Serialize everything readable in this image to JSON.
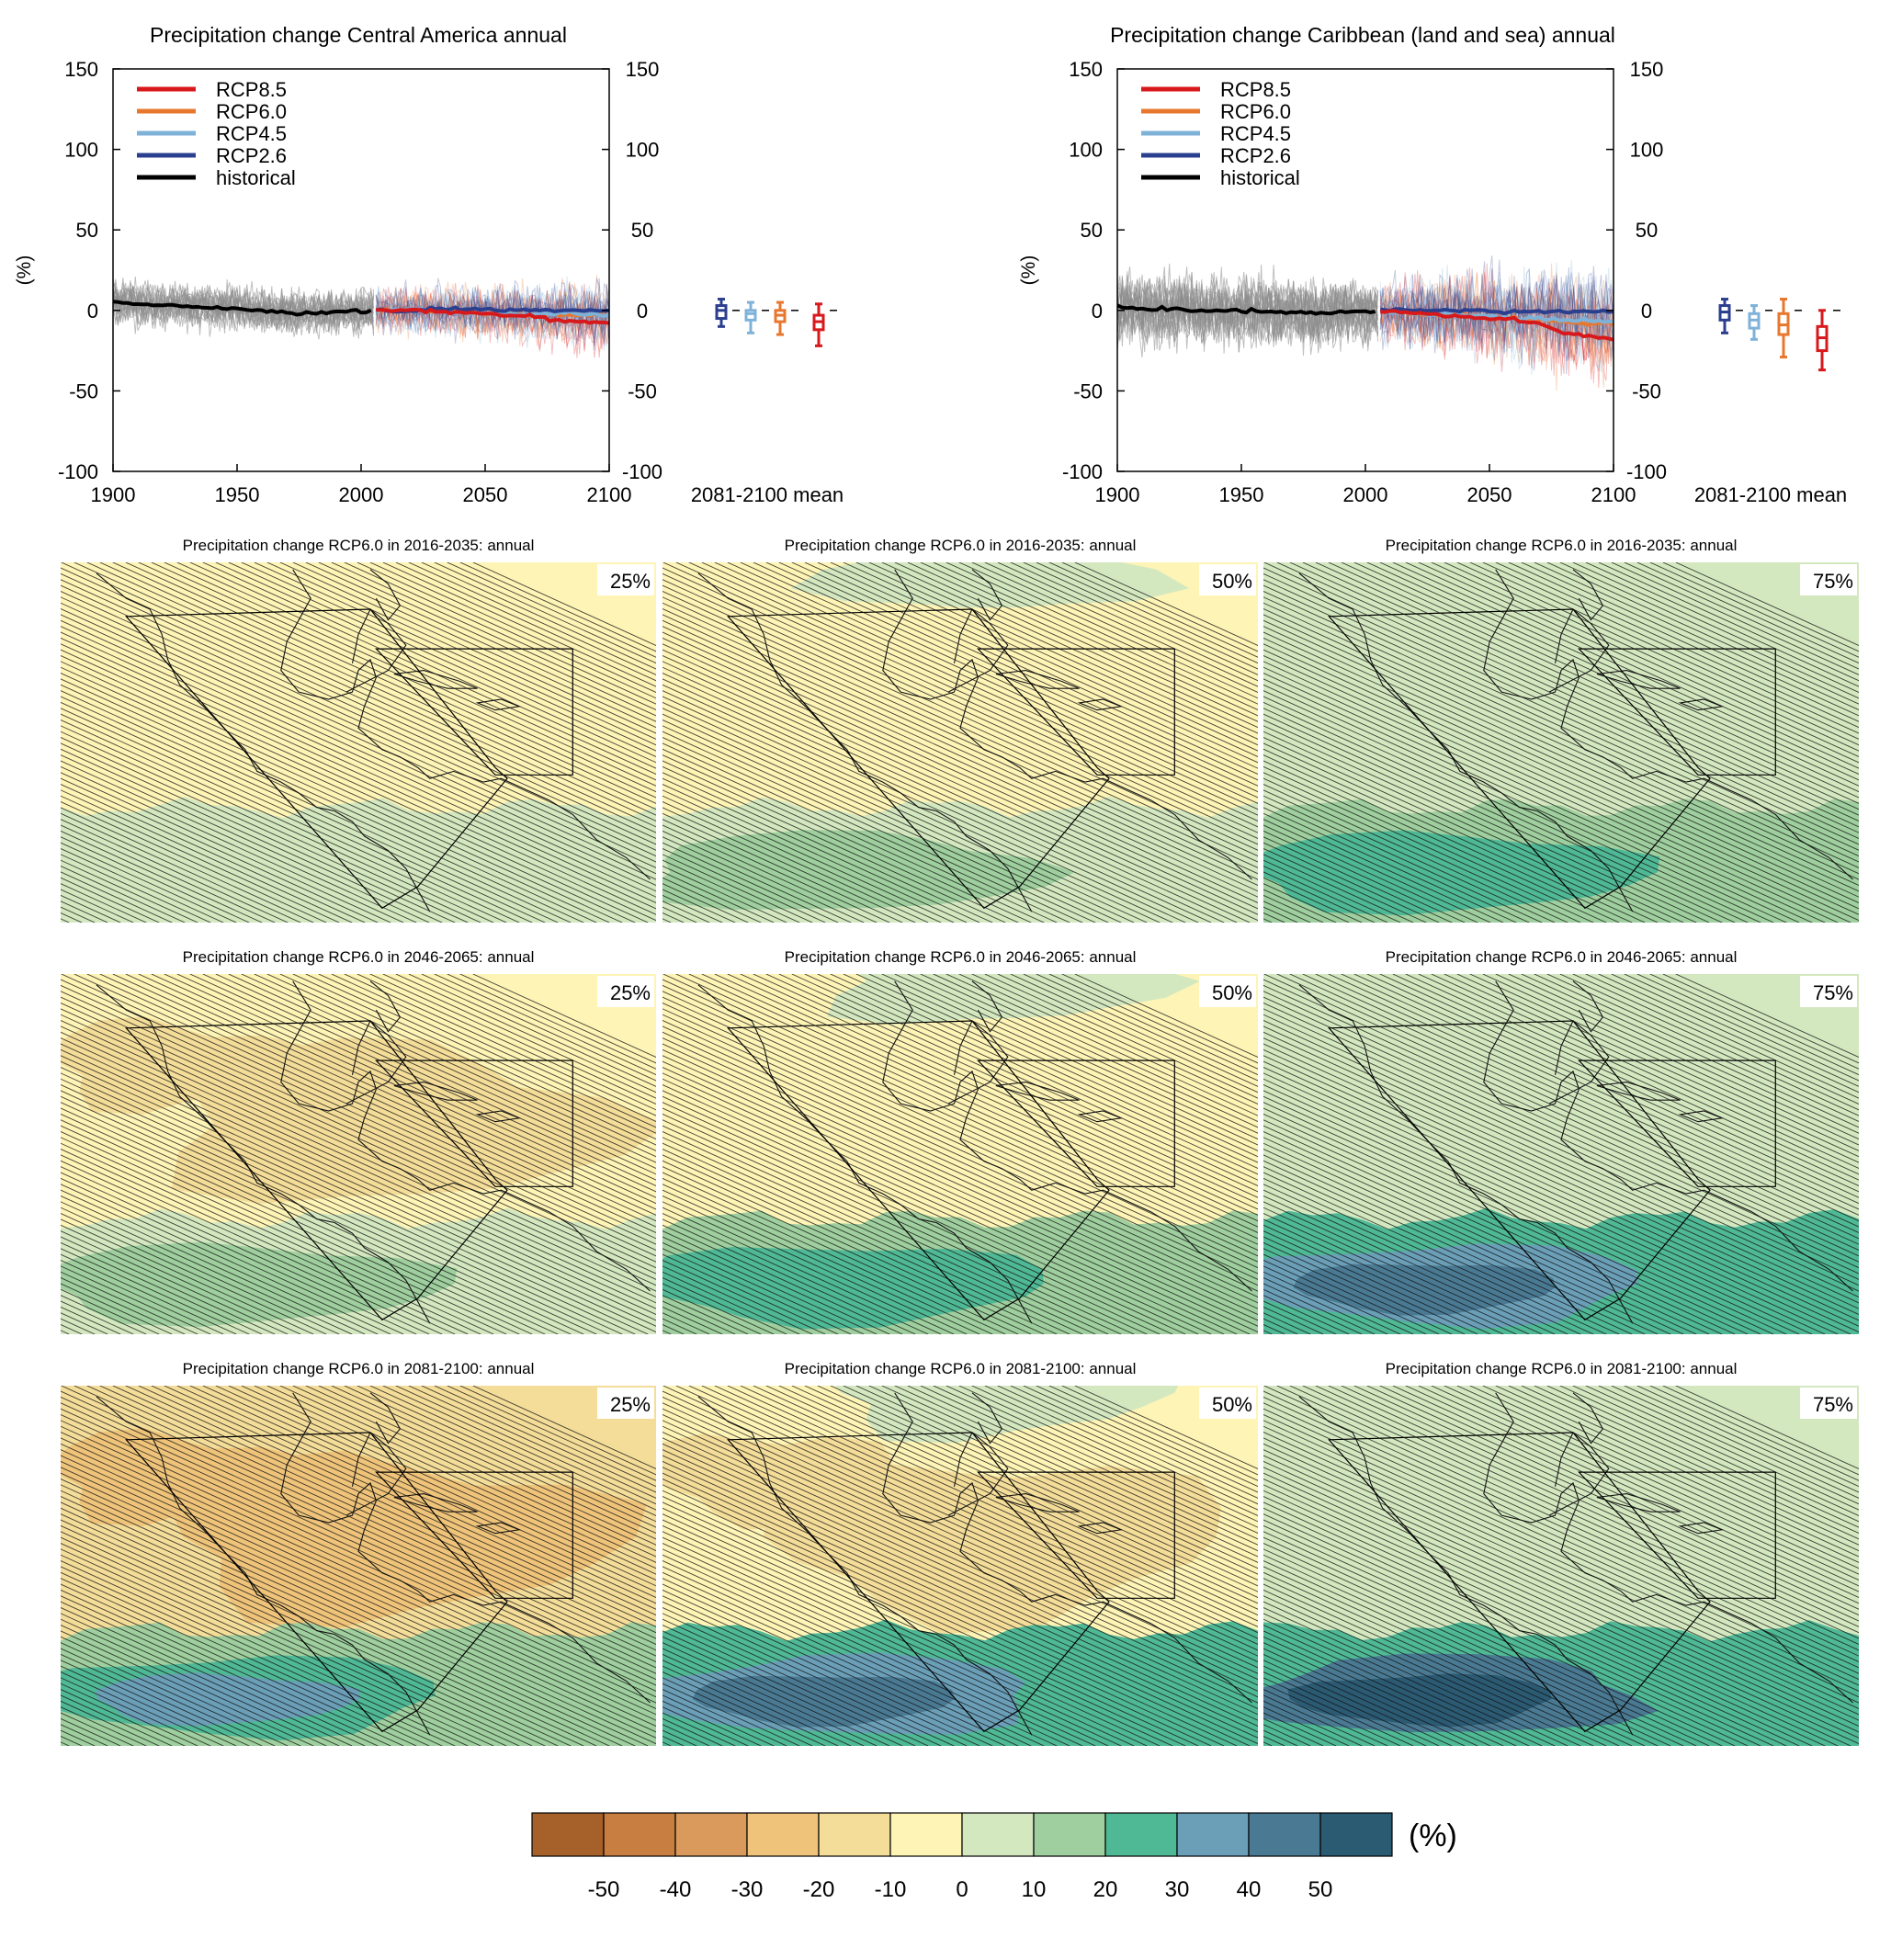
{
  "colors": {
    "rcp85": "#d7191c",
    "rcp60": "#e8772e",
    "rcp45": "#7fb2d9",
    "rcp26": "#2b3f8f",
    "historical": "#000000",
    "model_spread": "#8c8c8c",
    "scale": [
      "#a6612a",
      "#c77e40",
      "#d99a5c",
      "#efc47a",
      "#f4dd99",
      "#fef4b6",
      "#d4e8c0",
      "#9fcf9e",
      "#4fb895",
      "#6b9fb8",
      "#4a7a93",
      "#2b5a73"
    ]
  },
  "chart_data": [
    {
      "type": "line",
      "title": "Precipitation change Central America annual",
      "ylabel": "(%)",
      "xlim": [
        1900,
        2100
      ],
      "ylim": [
        -100,
        150
      ],
      "x_ticks": [
        "1900",
        "1950",
        "2000",
        "2050",
        "2100"
      ],
      "y_ticks": [
        "150",
        "100",
        "50",
        "0",
        "-50",
        "-100"
      ],
      "legend_position": "top-left",
      "series": [
        {
          "name": "RCP8.5",
          "x": [
            2006,
            2020,
            2040,
            2060,
            2070,
            2080,
            2090,
            2100
          ],
          "values": [
            0,
            0,
            -1,
            -3,
            -4,
            -6,
            -7,
            -8
          ]
        },
        {
          "name": "RCP6.0",
          "x": [
            2006,
            2020,
            2040,
            2060,
            2080,
            2100
          ],
          "values": [
            0,
            0,
            -1,
            -2,
            -3,
            -3
          ]
        },
        {
          "name": "RCP4.5",
          "x": [
            2006,
            2020,
            2040,
            2060,
            2080,
            2100
          ],
          "values": [
            0,
            0,
            -1,
            -2,
            -2,
            -3
          ]
        },
        {
          "name": "RCP2.6",
          "x": [
            2006,
            2020,
            2040,
            2060,
            2080,
            2100
          ],
          "values": [
            0,
            0,
            1,
            0,
            0,
            0
          ]
        },
        {
          "name": "historical",
          "x": [
            1900,
            1910,
            1920,
            1930,
            1940,
            1950,
            1960,
            1970,
            1980,
            1990,
            2005
          ],
          "values": [
            6,
            4,
            3,
            3,
            2,
            1,
            0,
            -1,
            -2,
            -1,
            0
          ]
        }
      ],
      "boxplot": {
        "label": "2081-2100 mean",
        "boxes": [
          {
            "name": "RCP2.6",
            "min": -10,
            "q1": -5,
            "median": 0,
            "q3": 3,
            "max": 7
          },
          {
            "name": "RCP4.5",
            "min": -14,
            "q1": -6,
            "median": -2,
            "q3": 0,
            "max": 5
          },
          {
            "name": "RCP6.0",
            "min": -15,
            "q1": -7,
            "median": -3,
            "q3": 0,
            "max": 5
          },
          {
            "name": "RCP8.5",
            "min": -22,
            "q1": -12,
            "median": -7,
            "q3": -3,
            "max": 4
          }
        ]
      }
    },
    {
      "type": "line",
      "title": "Precipitation change Caribbean (land and sea) annual",
      "ylabel": "(%)",
      "xlim": [
        1900,
        2100
      ],
      "ylim": [
        -100,
        150
      ],
      "x_ticks": [
        "1900",
        "1950",
        "2000",
        "2050",
        "2100"
      ],
      "y_ticks": [
        "150",
        "100",
        "50",
        "0",
        "-50",
        "-100"
      ],
      "legend_position": "top-left",
      "series": [
        {
          "name": "RCP8.5",
          "x": [
            2006,
            2020,
            2040,
            2060,
            2070,
            2080,
            2090,
            2100
          ],
          "values": [
            0,
            -2,
            -4,
            -6,
            -9,
            -14,
            -16,
            -18
          ]
        },
        {
          "name": "RCP6.0",
          "x": [
            2006,
            2020,
            2040,
            2060,
            2080,
            2100
          ],
          "values": [
            0,
            -2,
            -3,
            -5,
            -7,
            -9
          ]
        },
        {
          "name": "RCP4.5",
          "x": [
            2006,
            2020,
            2040,
            2060,
            2080,
            2100
          ],
          "values": [
            0,
            -2,
            -3,
            -5,
            -6,
            -7
          ]
        },
        {
          "name": "RCP2.6",
          "x": [
            2006,
            2020,
            2040,
            2060,
            2080,
            2100
          ],
          "values": [
            0,
            0,
            0,
            -1,
            -1,
            -1
          ]
        },
        {
          "name": "historical",
          "x": [
            1900,
            1910,
            1920,
            1930,
            1940,
            1950,
            1960,
            1970,
            1980,
            1990,
            2005
          ],
          "values": [
            2,
            1,
            1,
            0,
            0,
            0,
            -1,
            -1,
            -2,
            -1,
            0
          ]
        }
      ],
      "boxplot": {
        "label": "2081-2100 mean",
        "boxes": [
          {
            "name": "RCP2.6",
            "min": -14,
            "q1": -6,
            "median": -1,
            "q3": 3,
            "max": 7
          },
          {
            "name": "RCP4.5",
            "min": -18,
            "q1": -11,
            "median": -6,
            "q3": -2,
            "max": 3
          },
          {
            "name": "RCP6.0",
            "min": -29,
            "q1": -15,
            "median": -9,
            "q3": -2,
            "max": 7
          },
          {
            "name": "RCP8.5",
            "min": -37,
            "q1": -25,
            "median": -17,
            "q3": -10,
            "max": 0
          }
        ]
      }
    },
    {
      "type": "heatmap",
      "unit": "(%)",
      "colorbar_ticks": [
        "-50",
        "-40",
        "-30",
        "-20",
        "-10",
        "0",
        "10",
        "20",
        "30",
        "40",
        "50"
      ],
      "colorbar_bounds": [
        -60,
        -50,
        -40,
        -30,
        -20,
        -10,
        0,
        10,
        20,
        30,
        40,
        50,
        60
      ],
      "rows": [
        {
          "period": "2016-2035",
          "title": "Precipitation change RCP6.0 in 2016-2035: annual",
          "panels": [
            {
              "percentile": "25%",
              "fill": "#fef4b6",
              "south_band": "#d4e8c0",
              "south_core": null,
              "south_deep": null,
              "warm_patch": null
            },
            {
              "percentile": "50%",
              "fill": "#fef4b6",
              "south_band": "#d4e8c0",
              "south_core": "#9fcf9e",
              "south_deep": null,
              "warm_patch": null
            },
            {
              "percentile": "75%",
              "fill": "#d4e8c0",
              "south_band": "#9fcf9e",
              "south_core": "#4fb895",
              "south_deep": null,
              "warm_patch": null
            }
          ]
        },
        {
          "period": "2046-2065",
          "title": "Precipitation change RCP6.0 in 2046-2065: annual",
          "panels": [
            {
              "percentile": "25%",
              "fill": "#fef4b6",
              "south_band": "#d4e8c0",
              "south_core": "#9fcf9e",
              "south_deep": null,
              "warm_patch": "#f4dd99"
            },
            {
              "percentile": "50%",
              "fill": "#fef4b6",
              "south_band": "#9fcf9e",
              "south_core": "#4fb895",
              "south_deep": null,
              "warm_patch": null
            },
            {
              "percentile": "75%",
              "fill": "#d4e8c0",
              "south_band": "#4fb895",
              "south_core": "#6b9fb8",
              "south_deep": "#4a7a93",
              "warm_patch": null
            }
          ]
        },
        {
          "period": "2081-2100",
          "title": "Precipitation change RCP6.0 in 2081-2100: annual",
          "panels": [
            {
              "percentile": "25%",
              "fill": "#f4dd99",
              "south_band": "#9fcf9e",
              "south_core": "#4fb895",
              "south_deep": "#6b9fb8",
              "warm_patch": "#efc47a"
            },
            {
              "percentile": "50%",
              "fill": "#fef4b6",
              "south_band": "#4fb895",
              "south_core": "#6b9fb8",
              "south_deep": "#4a7a93",
              "warm_patch": "#f4dd99"
            },
            {
              "percentile": "75%",
              "fill": "#d4e8c0",
              "south_band": "#4fb895",
              "south_core": "#4a7a93",
              "south_deep": "#2b5a73",
              "warm_patch": null
            }
          ]
        }
      ]
    }
  ]
}
